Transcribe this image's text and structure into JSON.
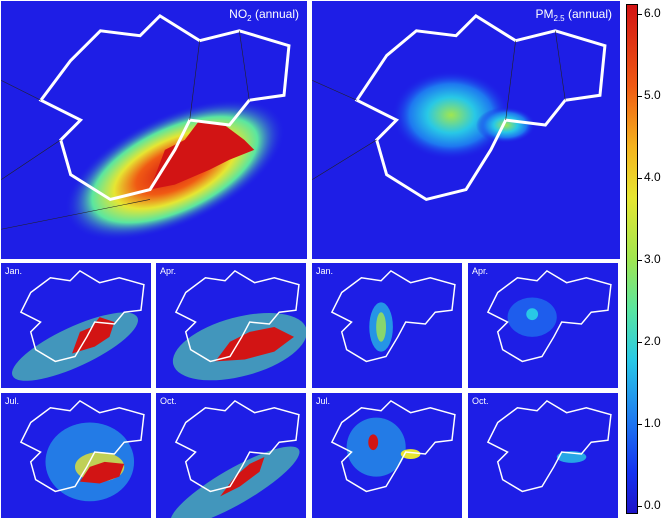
{
  "panels": {
    "no2_annual": {
      "title_main": "NO",
      "title_sub": "2",
      "title_suffix": " (annual)",
      "intensity": 1.0
    },
    "pm_annual": {
      "title_main": "PM",
      "title_sub": "2.5",
      "title_suffix": " (annual)",
      "intensity": 0.45
    },
    "no2_jan": {
      "label": "Jan."
    },
    "no2_apr": {
      "label": "Apr."
    },
    "no2_jul": {
      "label": "Jul."
    },
    "no2_oct": {
      "label": "Oct."
    },
    "pm_jan": {
      "label": "Jan."
    },
    "pm_apr": {
      "label": "Apr."
    },
    "pm_jul": {
      "label": "Jul."
    },
    "pm_oct": {
      "label": "Oct."
    }
  },
  "colorbar": {
    "ticks": [
      "6.0",
      "5.0",
      "4.0",
      "3.0",
      "2.0",
      "1.0",
      "0.0"
    ],
    "range": [
      0,
      6
    ]
  },
  "colors": {
    "background": "#1e1ee6",
    "outline": "#ffffff"
  }
}
